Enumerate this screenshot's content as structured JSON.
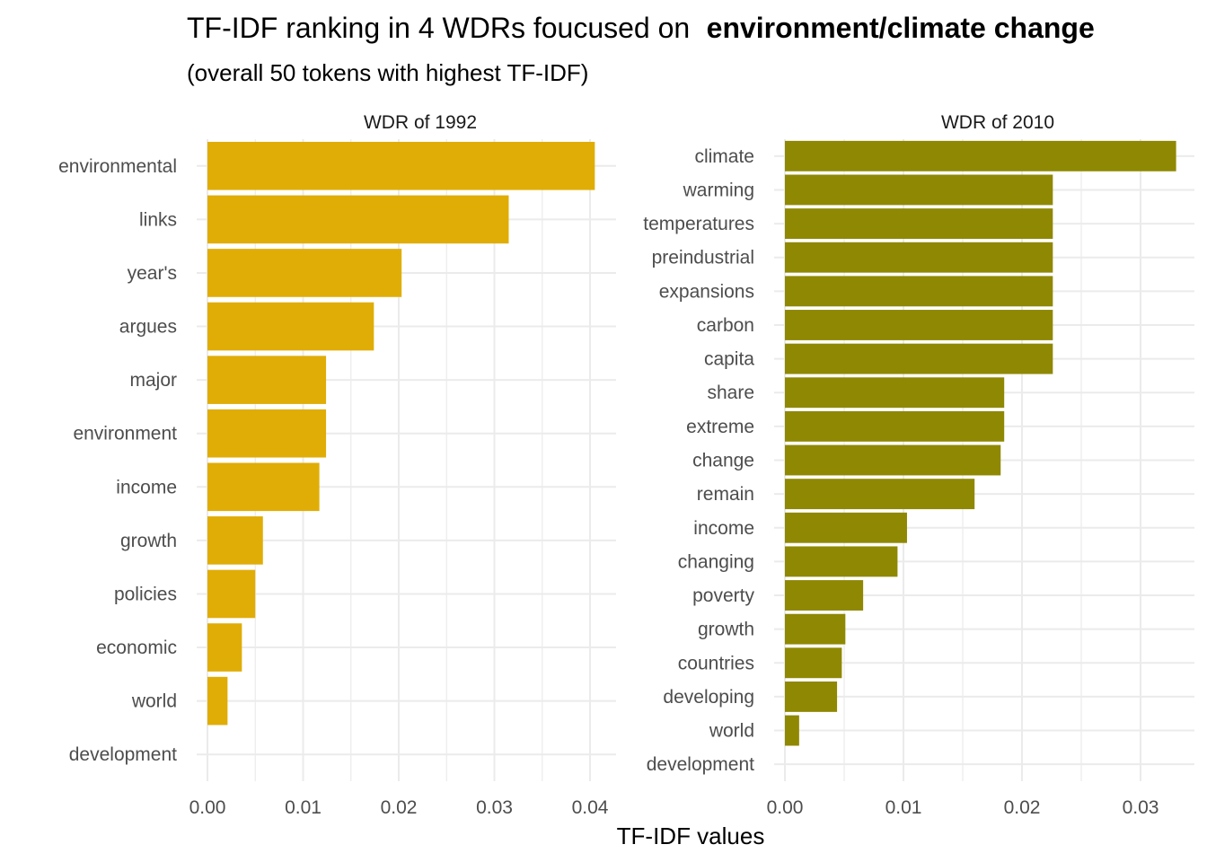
{
  "title_prefix": "TF-IDF ranking in 4 WDRs foucused on",
  "title_bold": "environment/climate change",
  "subtitle": "(overall 50 tokens with highest TF-IDF)",
  "x_axis_title": "TF-IDF values",
  "chart_data": [
    {
      "type": "bar",
      "orientation": "horizontal",
      "panel_title": "WDR of  1992",
      "color": "#E0AD07",
      "xlim": [
        0,
        0.042
      ],
      "xticks": [
        0,
        0.01,
        0.02,
        0.03,
        0.04
      ],
      "xtick_labels": [
        "0.00",
        "0.01",
        "0.02",
        "0.03",
        "0.04"
      ],
      "grid": true,
      "categories": [
        "environmental",
        "links",
        "year's",
        "argues",
        "major",
        "environment",
        "income",
        "growth",
        "policies",
        "economic",
        "world",
        "development"
      ],
      "values": [
        0.0405,
        0.0315,
        0.0203,
        0.0174,
        0.0124,
        0.0124,
        0.0117,
        0.0058,
        0.005,
        0.0036,
        0.0021,
        0.0
      ]
    },
    {
      "type": "bar",
      "orientation": "horizontal",
      "panel_title": "WDR of  2010",
      "color": "#8F8803",
      "xlim": [
        0,
        0.034
      ],
      "xticks": [
        0,
        0.01,
        0.02,
        0.03
      ],
      "xtick_labels": [
        "0.00",
        "0.01",
        "0.02",
        "0.03"
      ],
      "grid": true,
      "categories": [
        "climate",
        "warming",
        "temperatures",
        "preindustrial",
        "expansions",
        "carbon",
        "capita",
        "share",
        "extreme",
        "change",
        "remain",
        "income",
        "changing",
        "poverty",
        "growth",
        "countries",
        "developing",
        "world",
        "development"
      ],
      "values": [
        0.033,
        0.0226,
        0.0226,
        0.0226,
        0.0226,
        0.0226,
        0.0226,
        0.0185,
        0.0185,
        0.0182,
        0.016,
        0.0103,
        0.0095,
        0.0066,
        0.0051,
        0.0048,
        0.0044,
        0.0012,
        0.0
      ]
    }
  ]
}
